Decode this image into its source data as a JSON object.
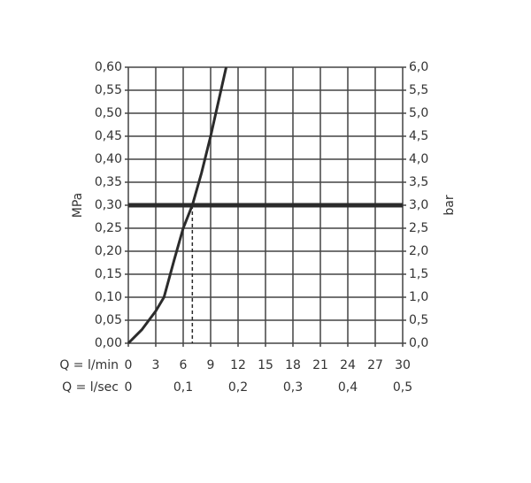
{
  "chart_data": {
    "type": "line",
    "xlabel": "Q = l/min",
    "x2label": "Q = l/sec",
    "ylabel": "MPa",
    "y2label": "bar",
    "x": [
      0,
      1.5,
      3,
      3.9,
      5,
      6,
      7,
      8,
      9,
      10.7
    ],
    "series": [
      {
        "color": "#2b2b2b",
        "values": [
          0,
          0.03,
          0.07,
          0.1,
          0.18,
          0.25,
          0.3,
          0.37,
          0.45,
          0.6
        ]
      }
    ],
    "reference": {
      "y": 0.3,
      "x": 7,
      "color": "#2b2b2b"
    },
    "xlim": [
      0,
      30
    ],
    "xticks": [
      0,
      3,
      6,
      9,
      12,
      15,
      18,
      21,
      24,
      27,
      30
    ],
    "x2lim": [
      0,
      0.5
    ],
    "x2ticks": [
      0,
      {
        "value": 0.1,
        "label": "0,1"
      },
      {
        "value": 0.2,
        "label": "0,2"
      },
      {
        "value": 0.3,
        "label": "0,3"
      },
      {
        "value": 0.4,
        "label": "0,4"
      },
      {
        "value": 0.5,
        "label": "0,5"
      }
    ],
    "ylim": [
      0,
      0.6
    ],
    "yticks": [
      {
        "value": 0,
        "label": "0,00"
      },
      {
        "value": 0.05,
        "label": "0,05"
      },
      {
        "value": 0.1,
        "label": "0,10"
      },
      {
        "value": 0.15,
        "label": "0,15"
      },
      {
        "value": 0.2,
        "label": "0,20"
      },
      {
        "value": 0.25,
        "label": "0,25"
      },
      {
        "value": 0.3,
        "label": "0,30"
      },
      {
        "value": 0.35,
        "label": "0,35"
      },
      {
        "value": 0.4,
        "label": "0,40"
      },
      {
        "value": 0.45,
        "label": "0,45"
      },
      {
        "value": 0.5,
        "label": "0,50"
      },
      {
        "value": 0.55,
        "label": "0,55"
      },
      {
        "value": 0.6,
        "label": "0,60"
      }
    ],
    "y2lim": [
      0,
      6
    ],
    "y2ticks": [
      {
        "value": 0,
        "label": "0,0"
      },
      {
        "value": 0.5,
        "label": "0,5"
      },
      {
        "value": 1,
        "label": "1,0"
      },
      {
        "value": 1.5,
        "label": "1,5"
      },
      {
        "value": 2,
        "label": "2,0"
      },
      {
        "value": 2.5,
        "label": "2,5"
      },
      {
        "value": 3,
        "label": "3,0"
      },
      {
        "value": 3.5,
        "label": "3,5"
      },
      {
        "value": 4,
        "label": "4,0"
      },
      {
        "value": 4.5,
        "label": "4,5"
      },
      {
        "value": 5,
        "label": "5,0"
      },
      {
        "value": 5.5,
        "label": "5,5"
      },
      {
        "value": 6,
        "label": "6,0"
      }
    ],
    "grid": true
  }
}
